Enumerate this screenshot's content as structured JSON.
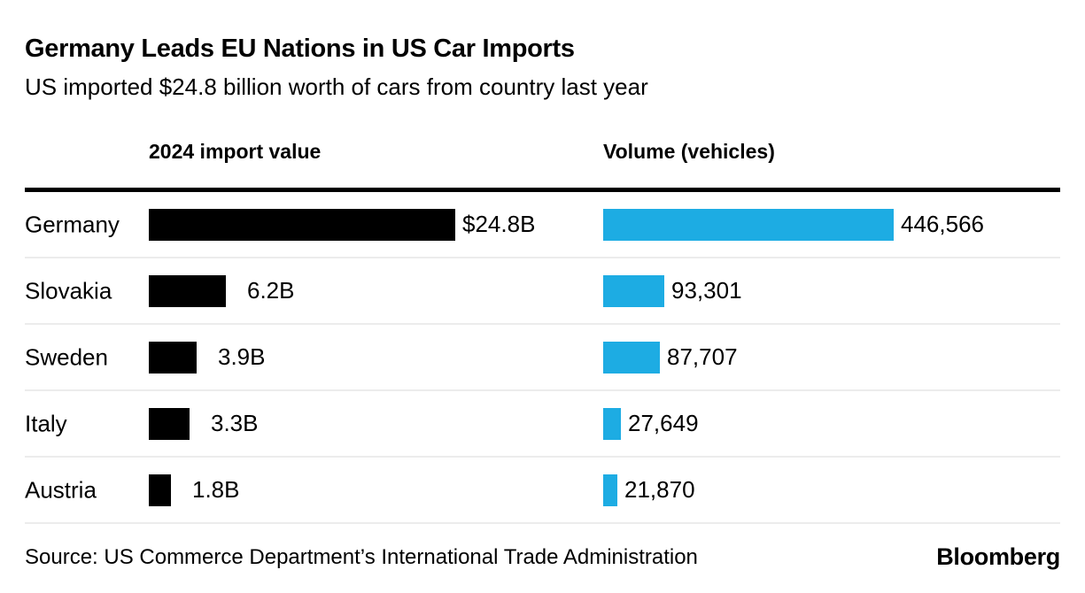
{
  "header": {
    "title": "Germany Leads EU Nations in US Car Imports",
    "subtitle": "US imported $24.8 billion worth of cars from country last year"
  },
  "columns": {
    "value_header": "2024 import value",
    "volume_header": "Volume (vehicles)"
  },
  "chart_data": {
    "type": "bar",
    "orientation": "horizontal",
    "title": "Germany Leads EU Nations in US Car Imports",
    "subtitle": "US imported $24.8 billion worth of cars from country last year",
    "categories": [
      "Germany",
      "Slovakia",
      "Sweden",
      "Italy",
      "Austria"
    ],
    "series": [
      {
        "name": "2024 import value",
        "unit": "USD billions",
        "values": [
          24.8,
          6.2,
          3.9,
          3.3,
          1.8
        ],
        "labels": [
          "$24.8B",
          "6.2B",
          "3.9B",
          "3.3B",
          "1.8B"
        ],
        "color": "#000000",
        "axis_max": 24.8
      },
      {
        "name": "Volume (vehicles)",
        "unit": "vehicles",
        "values": [
          446566,
          93301,
          87707,
          27649,
          21870
        ],
        "labels": [
          "446,566",
          "93,301",
          "87,707",
          "27,649",
          "21,870"
        ],
        "color": "#1DACE3",
        "axis_max": 446566
      }
    ],
    "grid": "row-separators",
    "legend": "column-headers"
  },
  "footer": {
    "source": "Source: US Commerce Department’s International Trade Administration",
    "brand": "Bloomberg"
  },
  "colors": {
    "bar_black": "#000000",
    "bar_blue": "#1DACE3",
    "separator": "#ECECEC",
    "top_rule": "#000000",
    "background": "#FFFFFF",
    "text": "#000000"
  }
}
